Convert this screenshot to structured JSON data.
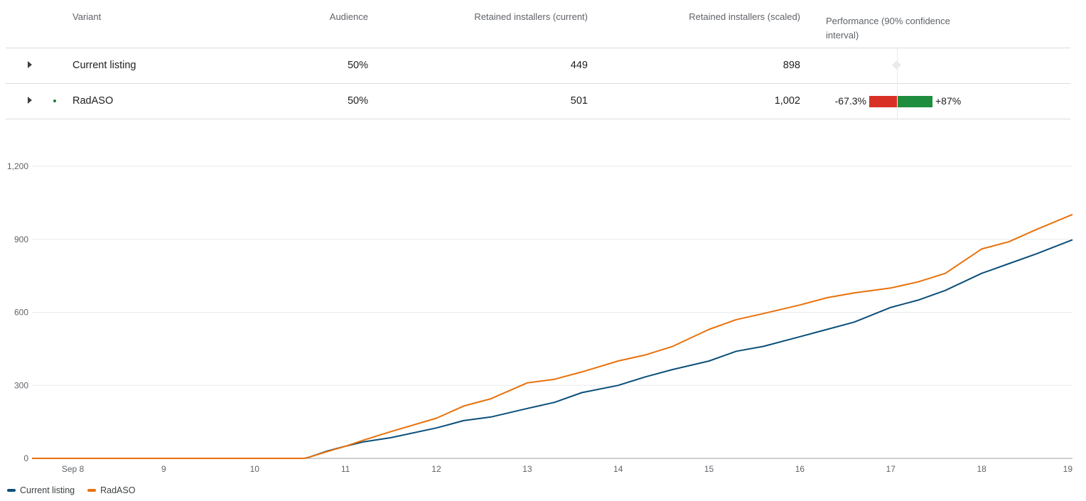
{
  "table": {
    "headers": {
      "variant": "Variant",
      "audience": "Audience",
      "retained_current": "Retained installers (current)",
      "retained_scaled": "Retained installers (scaled)",
      "performance": "Performance (90% confidence interval)"
    },
    "rows": [
      {
        "variant": "Current listing",
        "audience": "50%",
        "retained_current": "449",
        "retained_scaled": "898"
      },
      {
        "variant": "RadASO",
        "audience": "50%",
        "retained_current": "501",
        "retained_scaled": "1,002",
        "ci_low": "-67.3%",
        "ci_high": "+87%"
      }
    ]
  },
  "colors": {
    "current_listing": "#0b4f7a",
    "radaso": "#e8710a",
    "ci_negative": "#d93025",
    "ci_positive": "#1e8e3e"
  },
  "chart_data": {
    "type": "line",
    "title": "",
    "xlabel": "",
    "ylabel": "",
    "x_ticks": [
      "Sep 8",
      "9",
      "10",
      "11",
      "12",
      "13",
      "14",
      "15",
      "16",
      "17",
      "18",
      "19"
    ],
    "x_range": [
      7.55,
      19.0
    ],
    "ylim": [
      0,
      1200
    ],
    "y_ticks": [
      "0",
      "300",
      "600",
      "900",
      "1,200"
    ],
    "y_tick_values": [
      0,
      300,
      600,
      900,
      1200
    ],
    "grid": true,
    "legend_position": "bottom-left",
    "series": [
      {
        "name": "Current listing",
        "x": [
          7.55,
          10.55,
          10.6,
          10.8,
          11.0,
          11.2,
          11.5,
          12.0,
          12.3,
          12.6,
          13.0,
          13.3,
          13.6,
          14.0,
          14.3,
          14.6,
          15.0,
          15.3,
          15.6,
          16.0,
          16.3,
          16.6,
          17.0,
          17.3,
          17.6,
          18.0,
          18.3,
          18.6,
          19.0
        ],
        "values": [
          0,
          0,
          5,
          30,
          50,
          68,
          85,
          125,
          155,
          170,
          205,
          230,
          270,
          300,
          335,
          365,
          400,
          440,
          460,
          500,
          530,
          560,
          620,
          650,
          690,
          760,
          800,
          840,
          898
        ]
      },
      {
        "name": "RadASO",
        "x": [
          7.55,
          10.55,
          10.6,
          10.8,
          11.0,
          11.2,
          11.5,
          12.0,
          12.3,
          12.6,
          13.0,
          13.3,
          13.6,
          14.0,
          14.3,
          14.6,
          15.0,
          15.3,
          15.6,
          16.0,
          16.3,
          16.6,
          17.0,
          17.3,
          17.6,
          18.0,
          18.3,
          18.6,
          19.0
        ],
        "values": [
          0,
          0,
          5,
          28,
          50,
          75,
          110,
          165,
          215,
          245,
          310,
          325,
          355,
          400,
          425,
          460,
          530,
          570,
          595,
          630,
          660,
          680,
          700,
          725,
          760,
          860,
          890,
          940,
          1002
        ]
      }
    ]
  }
}
